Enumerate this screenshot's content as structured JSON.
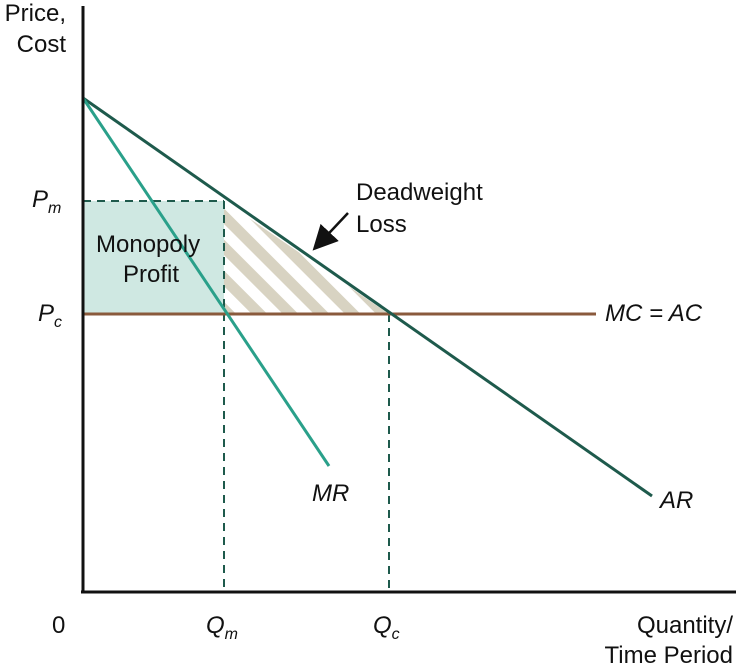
{
  "colors": {
    "axis": "#111111",
    "ar_line": "#1e5a4c",
    "mr_line": "#2aa08a",
    "mc_line": "#8a5a3c",
    "profit_fill": "#cfe8e2",
    "hatch": "#d8d3c2",
    "dashed": "#1e5a4c"
  },
  "axis": {
    "y_title_line1": "Price,",
    "y_title_line2": "Cost",
    "x_title_line1": "Quantity/",
    "x_title_line2": "Time Period",
    "origin": "0"
  },
  "ticks": {
    "pm_main": "P",
    "pm_sub": "m",
    "pc_main": "P",
    "pc_sub": "c",
    "qm_main": "Q",
    "qm_sub": "m",
    "qc_main": "Q",
    "qc_sub": "c"
  },
  "curves": {
    "mr": "MR",
    "ar": "AR",
    "mc_ac": "MC = AC"
  },
  "regions": {
    "profit_line1": "Monopoly",
    "profit_line2": "Profit",
    "dwl_line1": "Deadweight",
    "dwl_line2": "Loss"
  }
}
